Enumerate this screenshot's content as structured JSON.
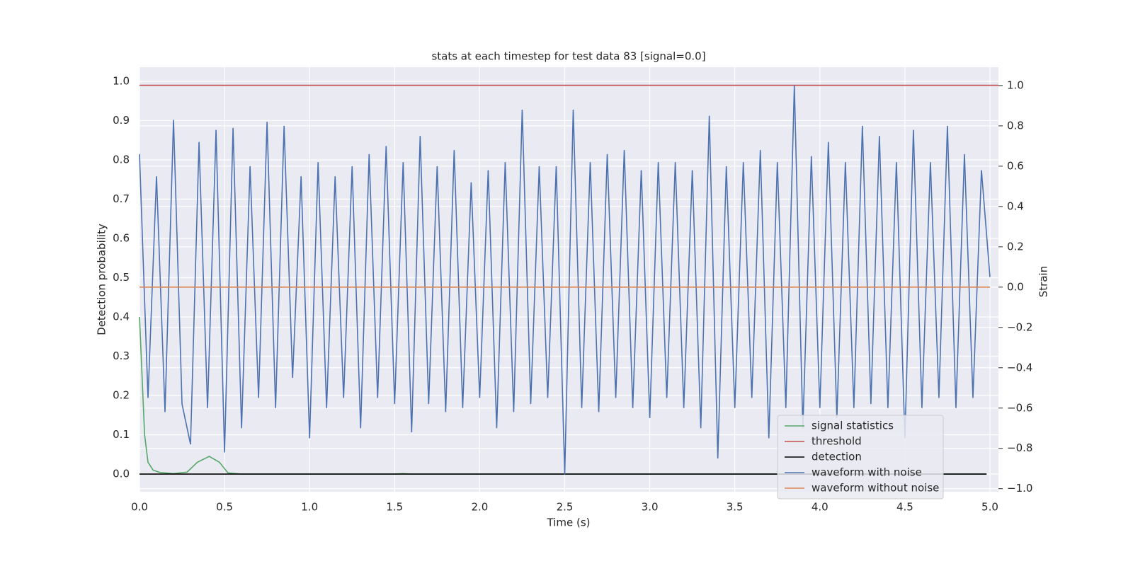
{
  "chart_data": {
    "type": "line",
    "title": "stats at each timestep for test data 83 [signal=0.0]",
    "xlabel": "Time (s)",
    "ylabel": "Detection probability",
    "y2label": "Strain",
    "xlim": [
      0,
      5.05
    ],
    "ylim": [
      -0.045,
      1.036
    ],
    "y2lim": [
      -1.015,
      1.091
    ],
    "xticks": [
      {
        "value": 0,
        "label": "0.0"
      },
      0.5,
      {
        "value": 1,
        "label": "1.0"
      },
      1.5,
      {
        "value": 2,
        "label": "2.0"
      },
      2.5,
      {
        "value": 3,
        "label": "3.0"
      },
      3.5,
      {
        "value": 4,
        "label": "4.0"
      },
      4.5,
      {
        "value": 5,
        "label": "5.0"
      }
    ],
    "yticks": [
      {
        "value": 0,
        "label": "0.0"
      },
      0.1,
      0.2,
      0.3,
      0.4,
      0.5,
      0.6,
      0.7,
      0.8,
      0.9,
      {
        "value": 1,
        "label": "1.0"
      }
    ],
    "y2ticks": [
      {
        "value": -1,
        "label": "−1.0"
      },
      {
        "value": -0.8,
        "label": "−0.8"
      },
      {
        "value": -0.6,
        "label": "−0.6"
      },
      {
        "value": -0.4,
        "label": "−0.4"
      },
      {
        "value": -0.2,
        "label": "−0.2"
      },
      {
        "value": 0,
        "label": "0.0"
      },
      0.2,
      0.4,
      0.6,
      0.8,
      {
        "value": 1,
        "label": "1.0"
      }
    ],
    "grid": true,
    "legend": "lower right",
    "series": [
      {
        "name": "signal statistics",
        "color": "#55a868",
        "x": [
          0,
          0.02,
          0.03,
          0.05,
          0.08,
          0.12,
          0.2,
          0.28,
          0.34,
          0.41,
          0.47,
          0.52,
          0.6,
          1.5,
          1.55,
          1.6,
          4.98
        ],
        "values": [
          0.4,
          0.2,
          0.1,
          0.03,
          0.01,
          0.004,
          0.001,
          0.005,
          0.03,
          0.045,
          0.03,
          0.003,
          0,
          0,
          0.001,
          0,
          0
        ]
      },
      {
        "name": "threshold",
        "color": "#c44e52",
        "x": [
          0,
          5.05
        ],
        "values": [
          0.99,
          0.99
        ]
      },
      {
        "name": "detection",
        "color": "#000000",
        "x": [
          0,
          4.98
        ],
        "values": [
          0,
          0
        ]
      },
      {
        "name": "waveform with noise",
        "color": "#4c72b0",
        "axis": "y2",
        "x": [
          0,
          0.05,
          0.1,
          0.15,
          0.2,
          0.25,
          0.3,
          0.35,
          0.4,
          0.45,
          0.5,
          0.55,
          0.6,
          0.65,
          0.7,
          0.75,
          0.8,
          0.85,
          0.9,
          0.95,
          1,
          1.05,
          1.1,
          1.15,
          1.2,
          1.25,
          1.3,
          1.35,
          1.4,
          1.45,
          1.5,
          1.55,
          1.6,
          1.65,
          1.7,
          1.75,
          1.8,
          1.85,
          1.9,
          1.95,
          2,
          2.05,
          2.1,
          2.15,
          2.2,
          2.25,
          2.3,
          2.35,
          2.4,
          2.45,
          2.5,
          2.55,
          2.6,
          2.65,
          2.7,
          2.75,
          2.8,
          2.85,
          2.9,
          2.95,
          3,
          3.05,
          3.1,
          3.15,
          3.2,
          3.25,
          3.3,
          3.35,
          3.4,
          3.45,
          3.5,
          3.55,
          3.6,
          3.65,
          3.7,
          3.75,
          3.8,
          3.85,
          3.9,
          3.95,
          4,
          4.05,
          4.1,
          4.15,
          4.2,
          4.25,
          4.3,
          4.35,
          4.4,
          4.45,
          4.5,
          4.55,
          4.6,
          4.65,
          4.7,
          4.75,
          4.8,
          4.85,
          4.9,
          4.95,
          5
        ],
        "values": [
          0.66,
          -0.55,
          0.55,
          -0.62,
          0.83,
          -0.58,
          -0.78,
          0.72,
          -0.6,
          0.78,
          -0.82,
          0.79,
          -0.7,
          0.6,
          -0.55,
          0.82,
          -0.6,
          0.8,
          -0.45,
          0.55,
          -0.75,
          0.62,
          -0.6,
          0.55,
          -0.55,
          0.6,
          -0.7,
          0.66,
          -0.55,
          0.7,
          -0.58,
          0.62,
          -0.72,
          0.75,
          -0.58,
          0.6,
          -0.62,
          0.68,
          -0.6,
          0.52,
          -0.55,
          0.58,
          -0.7,
          0.62,
          -0.62,
          0.88,
          -0.58,
          0.6,
          -0.55,
          0.6,
          -0.93,
          0.88,
          -0.6,
          0.62,
          -0.62,
          0.66,
          -0.55,
          0.68,
          -0.6,
          0.58,
          -0.65,
          0.62,
          -0.55,
          0.62,
          -0.6,
          0.58,
          -0.7,
          0.85,
          -0.85,
          0.6,
          -0.6,
          0.62,
          -0.55,
          0.68,
          -0.75,
          0.62,
          -0.6,
          1.0,
          -0.7,
          0.65,
          -0.6,
          0.72,
          -0.65,
          0.62,
          -0.6,
          0.8,
          -0.58,
          0.75,
          -0.6,
          0.62,
          -0.75,
          0.78,
          -0.6,
          0.62,
          -0.55,
          0.8,
          -0.6,
          0.66,
          -0.55,
          0.58,
          0.05
        ]
      },
      {
        "name": "waveform without noise",
        "color": "#dd8452",
        "axis": "y2",
        "x": [
          0,
          5
        ],
        "values": [
          0,
          0
        ]
      }
    ]
  }
}
